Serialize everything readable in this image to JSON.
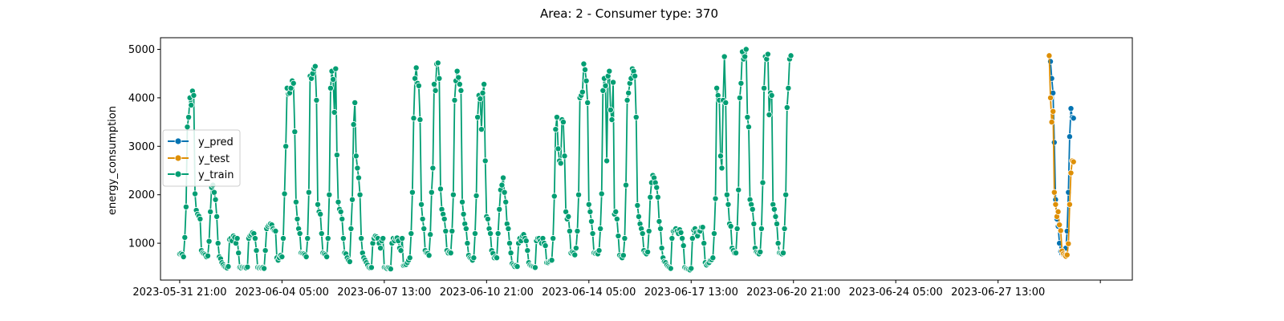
{
  "chart_data": {
    "type": "line",
    "title": "Area: 2 - Consumer type: 370",
    "ylabel": "energy_consumption",
    "xlabel": "",
    "ylim": [
      240,
      5240
    ],
    "yticks": [
      1000,
      2000,
      3000,
      4000,
      5000
    ],
    "xlim": [
      -15,
      745
    ],
    "x_tick_positions": [
      0,
      80,
      160,
      240,
      320,
      400,
      480,
      560,
      640,
      720
    ],
    "x_tick_labels": [
      "2023-05-31 21:00",
      "2023-06-04 05:00",
      "2023-06-07 13:00",
      "2023-06-10 21:00",
      "2023-06-14 05:00",
      "2023-06-17 13:00",
      "2023-06-20 21:00",
      "2023-06-24 05:00",
      "2023-06-27 13:00",
      ""
    ],
    "x_step_hours": 1,
    "grid": false,
    "legend_position": "center-left",
    "series": [
      {
        "name": "y_pred",
        "color": "#0173b2",
        "x_start": 680,
        "values": [
          4870,
          4750,
          4400,
          4100,
          3080,
          1900,
          1500,
          1350,
          1000,
          830,
          780,
          760,
          770,
          900,
          1250,
          2050,
          3200,
          3780,
          3600,
          3580
        ]
      },
      {
        "name": "y_test",
        "color": "#de8f05",
        "x_start": 680,
        "values": [
          4870,
          4000,
          3500,
          3720,
          2050,
          1800,
          1550,
          1650,
          1380,
          1260,
          840,
          780,
          750,
          730,
          760,
          990,
          1800,
          2450,
          2700,
          2680
        ]
      },
      {
        "name": "y_train",
        "color": "#029e73",
        "x_start": 0,
        "values": [
          780,
          790,
          770,
          720,
          1120,
          1750,
          3400,
          3600,
          4000,
          3850,
          4140,
          4050,
          2020,
          1680,
          1600,
          1560,
          1500,
          850,
          800,
          780,
          760,
          720,
          740,
          1040,
          1650,
          2150,
          2200,
          2050,
          1900,
          1550,
          1000,
          720,
          680,
          600,
          560,
          520,
          500,
          490,
          520,
          1080,
          1100,
          1050,
          1150,
          1120,
          1000,
          1100,
          800,
          500,
          490,
          510,
          500,
          500,
          490,
          510,
          1100,
          1150,
          1180,
          1220,
          1200,
          1100,
          850,
          500,
          490,
          500,
          490,
          500,
          480,
          850,
          1300,
          1350,
          1380,
          1400,
          1380,
          1300,
          1260,
          1250,
          700,
          650,
          700,
          750,
          720,
          1100,
          2020,
          3000,
          4200,
          4080,
          4100,
          4200,
          4350,
          4300,
          3300,
          1850,
          1500,
          1300,
          1200,
          800,
          790,
          780,
          760,
          720,
          1100,
          2050,
          4450,
          4400,
          4500,
          4600,
          4650,
          3950,
          1800,
          1650,
          1600,
          1200,
          800,
          780,
          760,
          720,
          1100,
          2000,
          4200,
          4550,
          4380,
          3700,
          4600,
          2820,
          1850,
          1700,
          1650,
          1500,
          1100,
          800,
          780,
          700,
          650,
          620,
          1300,
          1900,
          3450,
          3900,
          2800,
          2550,
          2350,
          2000,
          1100,
          800,
          700,
          650,
          600,
          550,
          500,
          490,
          500,
          1000,
          1100,
          1150,
          1130,
          1100,
          1000,
          900,
          1050,
          1100,
          500,
          490,
          480,
          500,
          490,
          470,
          1000,
          1100,
          1050,
          1100,
          1110,
          1050,
          900,
          850,
          1100,
          540,
          550,
          560,
          600,
          650,
          700,
          1200,
          2050,
          3580,
          4400,
          4620,
          4300,
          4250,
          3550,
          1800,
          1500,
          1300,
          850,
          800,
          790,
          750,
          1180,
          2050,
          2550,
          4280,
          4150,
          4700,
          4720,
          4400,
          2120,
          1700,
          1600,
          1500,
          1250,
          850,
          800,
          820,
          800,
          1250,
          2000,
          3950,
          4350,
          4550,
          4420,
          4280,
          4150,
          1850,
          1600,
          1400,
          1300,
          1000,
          750,
          700,
          680,
          650,
          700,
          1200,
          1980,
          3600,
          4050,
          3980,
          3350,
          4100,
          4280,
          2700,
          1550,
          1500,
          1300,
          1200,
          850,
          790,
          700,
          720,
          700,
          1200,
          1700,
          2100,
          2200,
          2350,
          2050,
          1850,
          1400,
          1300,
          1000,
          800,
          580,
          550,
          520,
          540,
          520,
          1000,
          1100,
          1050,
          1150,
          1180,
          1100,
          1050,
          850,
          600,
          550,
          530,
          520,
          510,
          500,
          1050,
          1100,
          1100,
          1050,
          1000,
          1100,
          1000,
          950,
          600,
          600,
          620,
          640,
          650,
          1100,
          1970,
          3350,
          3600,
          2950,
          2700,
          2650,
          3550,
          3500,
          2800,
          1650,
          1500,
          1550,
          1250,
          800,
          820,
          800,
          760,
          900,
          1250,
          2000,
          4000,
          4050,
          4120,
          4700,
          4580,
          4350,
          3900,
          1800,
          1650,
          1450,
          1200,
          800,
          790,
          800,
          780,
          850,
          1300,
          2020,
          4150,
          4400,
          4250,
          2700,
          4450,
          4550,
          3750,
          3550,
          4320,
          1600,
          1650,
          1500,
          1150,
          750,
          720,
          700,
          750,
          1100,
          2200,
          3950,
          4100,
          4300,
          4400,
          4600,
          4550,
          4450,
          3600,
          1780,
          1550,
          1400,
          1300,
          1200,
          850,
          800,
          780,
          820,
          1250,
          1950,
          2250,
          2400,
          2350,
          2250,
          2150,
          1950,
          1450,
          1300,
          900,
          700,
          620,
          600,
          550,
          520,
          500,
          480,
          1100,
          1250,
          1270,
          1300,
          1250,
          1200,
          1280,
          1220,
          1100,
          950,
          500,
          480,
          470,
          460,
          450,
          480,
          1100,
          1270,
          1300,
          1220,
          1150,
          1250,
          1250,
          1330,
          1330,
          1000,
          600,
          550,
          580,
          600,
          650,
          660,
          700,
          1200,
          1920,
          4200,
          4050,
          3950,
          2800,
          2550,
          3950,
          4850,
          3900,
          2000,
          1800,
          1400,
          1350,
          900,
          850,
          800,
          800,
          1300,
          2100,
          4000,
          4300,
          4950,
          4800,
          4850,
          5000,
          3600,
          3400,
          1900,
          1800,
          1700,
          1400,
          900,
          820,
          800,
          780,
          820,
          1300,
          2250,
          4200,
          4850,
          4800,
          4900,
          3650,
          4100,
          4050,
          1800,
          1700,
          1550,
          1400,
          1000,
          800,
          790,
          780,
          800,
          1300,
          2000,
          3800,
          4200,
          4800,
          4870
        ]
      }
    ]
  }
}
